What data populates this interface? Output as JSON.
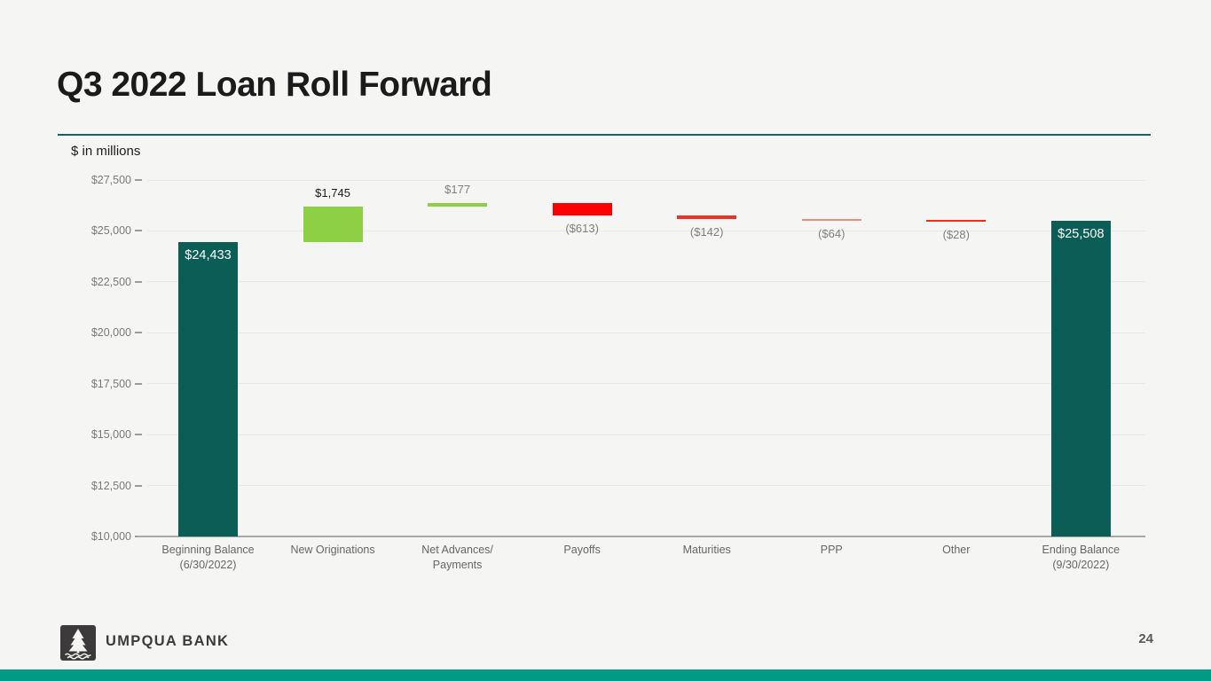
{
  "slide": {
    "title": "Q3 2022 Loan Roll Forward",
    "units_note": "$ in millions",
    "page_number": "24"
  },
  "footer": {
    "brand": "UMPQUA BANK",
    "logo_icon": "pine-tree-over-water"
  },
  "colors": {
    "background": "#f5f5f4",
    "title_text": "#1b1b1b",
    "divider_teal": "#0f6862",
    "total_bar_teal": "#0b5e55",
    "positive_green": "#8ed043",
    "negative_red": "#fb0200",
    "negative_red_light": "#eb8d7f",
    "bottom_bar_teal": "#009b82",
    "logo_charcoal": "#3d3a3b",
    "axis_label_gray": "#7a7a7a",
    "category_label_gray": "#666665"
  },
  "chart_data": {
    "type": "bar",
    "subtype": "waterfall",
    "title": "Q3 2022 Loan Roll Forward",
    "units": "$ in millions",
    "xlabel": "",
    "ylabel": "",
    "ylim": [
      10000,
      27500
    ],
    "grid": true,
    "y_axis": {
      "tick_values": [
        27500,
        25000,
        22500,
        20000,
        17500,
        15000,
        12500,
        10000
      ],
      "tick_labels": [
        "$27,500",
        "$25,000",
        "$22,500",
        "$20,000",
        "$17,500",
        "$15,000",
        "$12,500",
        "$10,000"
      ]
    },
    "bars": [
      {
        "category_lines": [
          "Beginning Balance",
          "(6/30/2022)"
        ],
        "kind": "total",
        "value": 24433,
        "display": "$24,433",
        "start": 10000,
        "end": 24433,
        "color": "#0b5e55",
        "label_position": "inside-top",
        "label_color": "#ffffff"
      },
      {
        "category_lines": [
          "New Originations"
        ],
        "kind": "increase",
        "value": 1745,
        "display": "$1,745",
        "start": 24433,
        "end": 26178,
        "color": "#8ed043",
        "label_position": "above",
        "label_color": "#1b1b1b"
      },
      {
        "category_lines": [
          "Net Advances/",
          "Payments"
        ],
        "kind": "increase",
        "value": 177,
        "display": "$177",
        "start": 26178,
        "end": 26355,
        "color": "#8ed043",
        "label_position": "above",
        "label_color": "#7f7f7f"
      },
      {
        "category_lines": [
          "Payoffs"
        ],
        "kind": "decrease",
        "value": -613,
        "display": "($613)",
        "start": 26355,
        "end": 25742,
        "color": "#fb0200",
        "label_position": "below",
        "label_color": "#7f7f7f"
      },
      {
        "category_lines": [
          "Maturities"
        ],
        "kind": "decrease",
        "value": -142,
        "display": "($142)",
        "start": 25742,
        "end": 25600,
        "color": "#e93425",
        "label_position": "below",
        "label_color": "#7f7f7f"
      },
      {
        "category_lines": [
          "PPP"
        ],
        "kind": "decrease",
        "value": -64,
        "display": "($64)",
        "start": 25600,
        "end": 25536,
        "color": "#eb8d7f",
        "label_position": "below",
        "label_color": "#7f7f7f"
      },
      {
        "category_lines": [
          "Other"
        ],
        "kind": "decrease",
        "value": -28,
        "display": "($28)",
        "start": 25536,
        "end": 25508,
        "color": "#ee2f1d",
        "label_position": "below",
        "label_color": "#7f7f7f"
      },
      {
        "category_lines": [
          "Ending Balance",
          "(9/30/2022)"
        ],
        "kind": "total",
        "value": 25508,
        "display": "$25,508",
        "start": 10000,
        "end": 25508,
        "color": "#0b5e55",
        "label_position": "inside-top",
        "label_color": "#ffffff"
      }
    ]
  }
}
